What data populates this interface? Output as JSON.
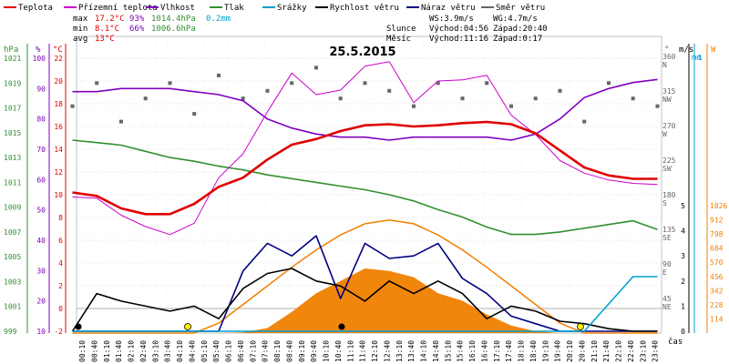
{
  "chart_data": {
    "type": "line",
    "title": "25.5.2015",
    "legend": [
      {
        "label": "Teplota",
        "color": "#e00000"
      },
      {
        "label": "Přízemní teplota",
        "color": "#cc00cc"
      },
      {
        "label": "Vlhkost",
        "color": "#8000c0"
      },
      {
        "label": "Tlak",
        "color": "#309030"
      },
      {
        "label": "Srážky",
        "color": "#00a0d0"
      },
      {
        "label": "Rychlost větru",
        "color": "#000000"
      },
      {
        "label": "Náraz větru",
        "color": "#000080"
      },
      {
        "label": "Směr větru",
        "color": "#666666"
      }
    ],
    "stats": {
      "max": {
        "label": "max",
        "temp": "17.2°C",
        "hum": "93%",
        "press": "1014.4hPa",
        "rain": "0.2mm"
      },
      "min": {
        "label": "min",
        "temp": "8.1°C",
        "hum": "66%",
        "press": "1006.6hPa"
      },
      "avg": {
        "label": "avg",
        "temp": "13°C"
      }
    },
    "wind_info": {
      "ws": "WS:3.9m/s",
      "wg": "WG:4.7m/s"
    },
    "sun": {
      "label": "Slunce",
      "rise": "Východ:04:56",
      "set": "Západ:20:40"
    },
    "moon": {
      "label": "Měsíc",
      "rise": "Východ:11:16",
      "set": "Západ:0:17"
    },
    "axes": {
      "hpa_unit": "hPa",
      "pct_unit": "%",
      "degc_unit": "°C",
      "deg_unit": "°",
      "ms_unit": "m/s",
      "w_unit": "W",
      "mm_unit": "mm",
      "x_unit": "čas",
      "hpa_ticks": [
        "1021",
        "1019",
        "1017",
        "1015",
        "1013",
        "1011",
        "1009",
        "1007",
        "1005",
        "1003",
        "1001",
        "999"
      ],
      "pct_ticks": [
        "100",
        "90",
        "80",
        "70",
        "60",
        "50",
        "40",
        "30",
        "20",
        "10"
      ],
      "temp_ticks": [
        "22",
        "20",
        "18",
        "16",
        "14",
        "12",
        "10",
        "8",
        "6",
        "4",
        "2",
        "0",
        "-2"
      ],
      "dir_ticks": [
        "360",
        "315",
        "270",
        "225",
        "180",
        "135",
        "90",
        "45"
      ],
      "dir_labels": [
        "N",
        "NW",
        "W",
        "SW",
        "S",
        "SE",
        "E",
        "NE"
      ],
      "ms_ticks": [
        "5",
        "4",
        "3",
        "2",
        "1",
        "0"
      ],
      "w_ticks": [
        "1026",
        "912",
        "798",
        "684",
        "570",
        "456",
        "342",
        "228",
        "114"
      ],
      "mm_ticks": [
        "1"
      ],
      "x_ticks": [
        "00:10",
        "00:40",
        "01:10",
        "01:40",
        "02:10",
        "02:40",
        "03:10",
        "03:40",
        "04:10",
        "04:40",
        "05:10",
        "05:40",
        "06:10",
        "06:40",
        "07:10",
        "07:40",
        "08:10",
        "08:40",
        "09:10",
        "09:40",
        "10:10",
        "10:40",
        "11:10",
        "11:40",
        "12:10",
        "12:40",
        "13:10",
        "13:40",
        "14:10",
        "14:40",
        "15:10",
        "15:40",
        "16:10",
        "16:40",
        "17:10",
        "17:40",
        "18:10",
        "18:40",
        "19:10",
        "19:40",
        "20:10",
        "20:40",
        "21:10",
        "21:40",
        "22:10",
        "22:40",
        "23:10",
        "23:40"
      ],
      "temp_range": [
        -2,
        23
      ]
    },
    "x_hours": [
      0,
      1,
      2,
      3,
      4,
      5,
      6,
      7,
      8,
      9,
      10,
      11,
      12,
      13,
      14,
      15,
      16,
      17,
      18,
      19,
      20,
      21,
      22,
      23,
      24
    ],
    "series": [
      {
        "name": "Teplota",
        "color": "#e00000",
        "unit": "°C",
        "values": [
          10.2,
          9.9,
          8.8,
          8.3,
          8.3,
          9.2,
          10.7,
          11.5,
          13.1,
          14.4,
          14.9,
          15.6,
          16.1,
          16.2,
          16.0,
          16.1,
          16.3,
          16.4,
          16.2,
          15.4,
          13.9,
          12.4,
          11.7,
          11.4,
          11.4
        ]
      },
      {
        "name": "Přízemní teplota",
        "color": "#cc00cc",
        "unit": "°C",
        "values": [
          9.8,
          9.7,
          8.2,
          7.2,
          6.5,
          7.5,
          11.5,
          13.6,
          17.3,
          20.7,
          18.8,
          19.2,
          21.3,
          21.7,
          18.1,
          20.0,
          20.1,
          20.5,
          17.0,
          15.3,
          13.0,
          11.9,
          11.3,
          11.0,
          10.9
        ]
      },
      {
        "name": "Vlhkost",
        "color": "#8000c0",
        "unit": "%",
        "values": [
          89,
          89,
          90,
          90,
          90,
          89,
          88,
          86,
          80,
          77,
          75,
          74,
          74,
          73,
          74,
          74,
          74,
          74,
          73,
          75,
          80,
          87,
          90,
          92,
          93
        ]
      },
      {
        "name": "Tlak",
        "color": "#309030",
        "unit": "hPa",
        "values": [
          1014.4,
          1014.2,
          1014.0,
          1013.5,
          1013.0,
          1012.7,
          1012.3,
          1012.0,
          1011.6,
          1011.3,
          1011.0,
          1010.7,
          1010.4,
          1010.0,
          1009.5,
          1008.8,
          1008.2,
          1007.4,
          1006.8,
          1006.8,
          1007.0,
          1007.3,
          1007.6,
          1007.9,
          1007.2
        ]
      },
      {
        "name": "Rychlost větru",
        "color": "#000000",
        "unit": "m/s",
        "values": [
          0,
          1.5,
          1.2,
          1.0,
          0.8,
          1.0,
          0.5,
          1.7,
          2.3,
          2.5,
          2.0,
          1.8,
          1.2,
          2.0,
          1.5,
          2.0,
          1.5,
          0.5,
          1.0,
          0.8,
          0.4,
          0.3,
          0.1,
          0,
          0
        ]
      },
      {
        "name": "Náraz větru",
        "color": "#000080",
        "unit": "m/s",
        "values": [
          0,
          0,
          0,
          0,
          0,
          0,
          0,
          2.4,
          3.5,
          3.0,
          3.8,
          1.3,
          3.5,
          2.9,
          3.0,
          3.5,
          2.1,
          1.5,
          0.6,
          0.3,
          0,
          0,
          0,
          0,
          0
        ]
      },
      {
        "name": "Srážky",
        "color": "#00a0d0",
        "unit": "mm",
        "values": [
          0,
          0,
          0,
          0,
          0,
          0,
          0,
          0,
          0,
          0,
          0,
          0,
          0,
          0,
          0,
          0,
          0,
          0,
          0,
          0,
          0,
          0,
          0.1,
          0.2,
          0.2
        ]
      },
      {
        "name": "Směr větru",
        "color": "#666666",
        "unit": "°",
        "values": [
          300,
          330,
          280,
          310,
          330,
          290,
          340,
          310,
          320,
          330,
          350,
          310,
          330,
          320,
          300,
          330,
          310,
          330,
          300,
          310,
          320,
          280,
          330,
          310,
          300
        ]
      }
    ],
    "solar": {
      "name": "solar radiation",
      "color": "#f08000",
      "unit": "W",
      "values": [
        0,
        0,
        0,
        0,
        0,
        0,
        0,
        5,
        40,
        170,
        320,
        420,
        520,
        500,
        450,
        320,
        260,
        150,
        60,
        15,
        0,
        0,
        0,
        0,
        0
      ]
    },
    "solar_theoretical": {
      "color": "#f08000",
      "values": [
        0,
        0,
        0,
        0,
        0,
        0,
        80,
        230,
        380,
        530,
        670,
        790,
        880,
        910,
        880,
        790,
        670,
        530,
        380,
        230,
        80,
        0,
        0,
        0,
        0
      ]
    }
  }
}
